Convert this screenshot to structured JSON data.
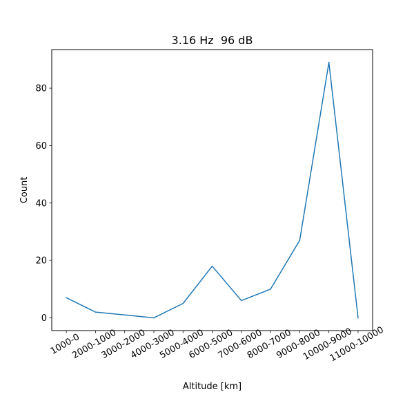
{
  "chart_data": {
    "type": "line",
    "title": "3.16 Hz  96 dB",
    "xlabel": "Altitude [km]",
    "ylabel": "Count",
    "categories": [
      "1000-0",
      "2000-1000",
      "3000-2000",
      "4000-3000",
      "5000-4000",
      "6000-5000",
      "7000-6000",
      "8000-7000",
      "9000-8000",
      "10000-9000",
      "11000-10000"
    ],
    "series": [
      {
        "values": [
          7,
          2,
          1,
          0,
          5,
          18,
          6,
          10,
          27,
          89,
          0
        ],
        "color": "#1f77b4"
      }
    ],
    "yticks": [
      0,
      20,
      40,
      60,
      80
    ],
    "ylim": [
      -4.45,
      93.45
    ],
    "xtick_rotation_deg": 30,
    "grid": false,
    "legend": "none"
  }
}
